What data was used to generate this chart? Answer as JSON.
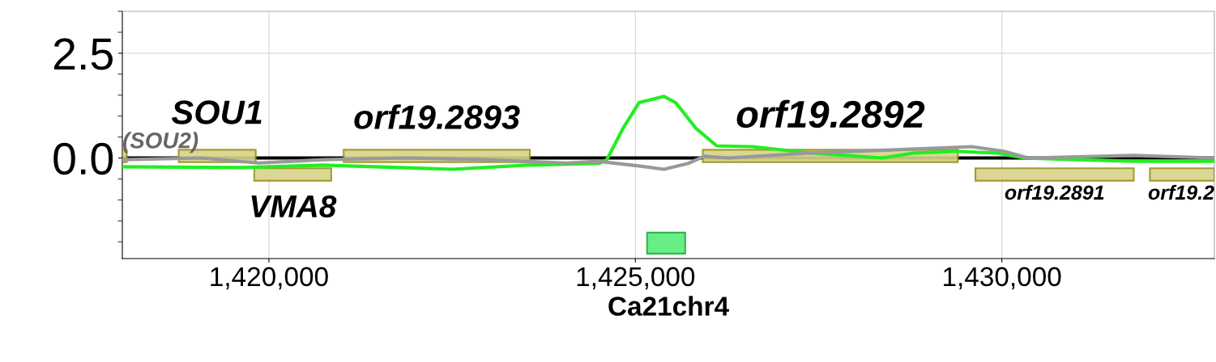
{
  "chart_data": {
    "type": "line",
    "xlabel": "Ca21chr4",
    "xlim": [
      1418000,
      1432900
    ],
    "ylim": [
      -2.4,
      3.5
    ],
    "xticks": [
      {
        "value": 1420000,
        "label": "1,420,000"
      },
      {
        "value": 1425000,
        "label": "1,425,000"
      },
      {
        "value": 1430000,
        "label": "1,430,000"
      }
    ],
    "yticks": [
      {
        "value": 0,
        "label": "0.0"
      },
      {
        "value": 2.5,
        "label": "2.5"
      }
    ],
    "grid": true,
    "marker": "none",
    "line_style": "solid",
    "ref_lines": [
      {
        "axis": "y",
        "value": 0,
        "color": "#000000"
      }
    ],
    "series": [
      {
        "color": "#22ee22",
        "x": [
          1418000,
          1419640,
          1420740,
          1422510,
          1423510,
          1424500,
          1424610,
          1424830,
          1425050,
          1425390,
          1425550,
          1425830,
          1426110,
          1426600,
          1427380,
          1428370,
          1428810,
          1429370,
          1429920,
          1430310,
          1430700,
          1431800,
          1432900
        ],
        "values": [
          -0.21,
          -0.23,
          -0.17,
          -0.27,
          -0.17,
          -0.13,
          -0.04,
          0.7,
          1.32,
          1.47,
          1.32,
          0.7,
          0.29,
          0.27,
          0.12,
          0.0,
          0.12,
          0.16,
          0.12,
          0.0,
          -0.02,
          -0.08,
          -0.08
        ]
      },
      {
        "color": "#999999",
        "x": [
          1418000,
          1419080,
          1419860,
          1420740,
          1421850,
          1422950,
          1424060,
          1424500,
          1425050,
          1425390,
          1425720,
          1425940,
          1426270,
          1427380,
          1428480,
          1429590,
          1430030,
          1430360,
          1431800,
          1432900
        ],
        "values": [
          -0.04,
          0.0,
          -0.12,
          -0.04,
          0.0,
          -0.04,
          -0.12,
          -0.08,
          -0.19,
          -0.27,
          -0.13,
          0.04,
          0.0,
          0.12,
          0.19,
          0.27,
          0.16,
          0.0,
          0.06,
          0.0
        ]
      }
    ],
    "bands": [
      {
        "axis": "x",
        "from": 1418000,
        "to": 1418060,
        "label": "(SOU2)",
        "color": "#d8d48a"
      },
      {
        "axis": "x",
        "from": 1418770,
        "to": 1419820,
        "label": "SOU1",
        "color": "#d8d48a"
      },
      {
        "axis": "x",
        "from": 1419800,
        "to": 1420850,
        "label": "VMA8",
        "color": "#d8d48a"
      },
      {
        "axis": "x",
        "from": 1421020,
        "to": 1423560,
        "label": "orf19.2893",
        "color": "#d8d48a"
      },
      {
        "axis": "x",
        "from": 1425920,
        "to": 1429400,
        "label": "orf19.2892",
        "color": "#d8d48a"
      },
      {
        "axis": "x",
        "from": 1429640,
        "to": 1431800,
        "label": "orf19.2891",
        "color": "#d8d48a"
      },
      {
        "axis": "x",
        "from": 1432020,
        "to": 1432900,
        "label": "orf19.2",
        "color": "#d8d48a"
      },
      {
        "axis": "x",
        "from": 1425160,
        "to": 1425680,
        "color": "#55ee77"
      }
    ]
  }
}
